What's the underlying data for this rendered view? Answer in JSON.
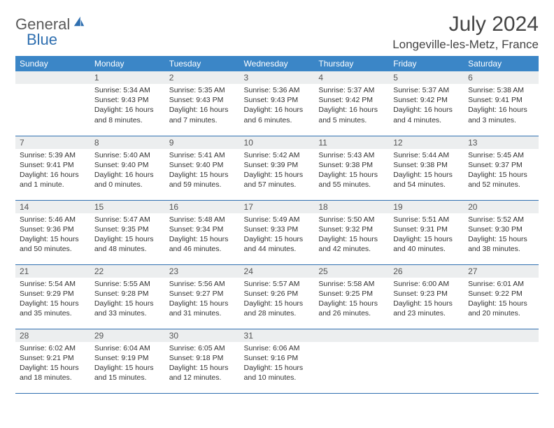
{
  "brand": {
    "part1": "General",
    "part2": "Blue"
  },
  "title": "July 2024",
  "location": "Longeville-les-Metz, France",
  "colors": {
    "header_bg": "#3b86c7",
    "header_text": "#ffffff",
    "daynum_bg": "#eceeef",
    "border": "#2f6fb0",
    "brand_gray": "#5a5a5a",
    "brand_blue": "#2f6fb0"
  },
  "weekdays": [
    "Sunday",
    "Monday",
    "Tuesday",
    "Wednesday",
    "Thursday",
    "Friday",
    "Saturday"
  ],
  "weeks": [
    [
      {
        "n": "",
        "lines": []
      },
      {
        "n": "1",
        "lines": [
          "Sunrise: 5:34 AM",
          "Sunset: 9:43 PM",
          "Daylight: 16 hours and 8 minutes."
        ]
      },
      {
        "n": "2",
        "lines": [
          "Sunrise: 5:35 AM",
          "Sunset: 9:43 PM",
          "Daylight: 16 hours and 7 minutes."
        ]
      },
      {
        "n": "3",
        "lines": [
          "Sunrise: 5:36 AM",
          "Sunset: 9:43 PM",
          "Daylight: 16 hours and 6 minutes."
        ]
      },
      {
        "n": "4",
        "lines": [
          "Sunrise: 5:37 AM",
          "Sunset: 9:42 PM",
          "Daylight: 16 hours and 5 minutes."
        ]
      },
      {
        "n": "5",
        "lines": [
          "Sunrise: 5:37 AM",
          "Sunset: 9:42 PM",
          "Daylight: 16 hours and 4 minutes."
        ]
      },
      {
        "n": "6",
        "lines": [
          "Sunrise: 5:38 AM",
          "Sunset: 9:41 PM",
          "Daylight: 16 hours and 3 minutes."
        ]
      }
    ],
    [
      {
        "n": "7",
        "lines": [
          "Sunrise: 5:39 AM",
          "Sunset: 9:41 PM",
          "Daylight: 16 hours and 1 minute."
        ]
      },
      {
        "n": "8",
        "lines": [
          "Sunrise: 5:40 AM",
          "Sunset: 9:40 PM",
          "Daylight: 16 hours and 0 minutes."
        ]
      },
      {
        "n": "9",
        "lines": [
          "Sunrise: 5:41 AM",
          "Sunset: 9:40 PM",
          "Daylight: 15 hours and 59 minutes."
        ]
      },
      {
        "n": "10",
        "lines": [
          "Sunrise: 5:42 AM",
          "Sunset: 9:39 PM",
          "Daylight: 15 hours and 57 minutes."
        ]
      },
      {
        "n": "11",
        "lines": [
          "Sunrise: 5:43 AM",
          "Sunset: 9:38 PM",
          "Daylight: 15 hours and 55 minutes."
        ]
      },
      {
        "n": "12",
        "lines": [
          "Sunrise: 5:44 AM",
          "Sunset: 9:38 PM",
          "Daylight: 15 hours and 54 minutes."
        ]
      },
      {
        "n": "13",
        "lines": [
          "Sunrise: 5:45 AM",
          "Sunset: 9:37 PM",
          "Daylight: 15 hours and 52 minutes."
        ]
      }
    ],
    [
      {
        "n": "14",
        "lines": [
          "Sunrise: 5:46 AM",
          "Sunset: 9:36 PM",
          "Daylight: 15 hours and 50 minutes."
        ]
      },
      {
        "n": "15",
        "lines": [
          "Sunrise: 5:47 AM",
          "Sunset: 9:35 PM",
          "Daylight: 15 hours and 48 minutes."
        ]
      },
      {
        "n": "16",
        "lines": [
          "Sunrise: 5:48 AM",
          "Sunset: 9:34 PM",
          "Daylight: 15 hours and 46 minutes."
        ]
      },
      {
        "n": "17",
        "lines": [
          "Sunrise: 5:49 AM",
          "Sunset: 9:33 PM",
          "Daylight: 15 hours and 44 minutes."
        ]
      },
      {
        "n": "18",
        "lines": [
          "Sunrise: 5:50 AM",
          "Sunset: 9:32 PM",
          "Daylight: 15 hours and 42 minutes."
        ]
      },
      {
        "n": "19",
        "lines": [
          "Sunrise: 5:51 AM",
          "Sunset: 9:31 PM",
          "Daylight: 15 hours and 40 minutes."
        ]
      },
      {
        "n": "20",
        "lines": [
          "Sunrise: 5:52 AM",
          "Sunset: 9:30 PM",
          "Daylight: 15 hours and 38 minutes."
        ]
      }
    ],
    [
      {
        "n": "21",
        "lines": [
          "Sunrise: 5:54 AM",
          "Sunset: 9:29 PM",
          "Daylight: 15 hours and 35 minutes."
        ]
      },
      {
        "n": "22",
        "lines": [
          "Sunrise: 5:55 AM",
          "Sunset: 9:28 PM",
          "Daylight: 15 hours and 33 minutes."
        ]
      },
      {
        "n": "23",
        "lines": [
          "Sunrise: 5:56 AM",
          "Sunset: 9:27 PM",
          "Daylight: 15 hours and 31 minutes."
        ]
      },
      {
        "n": "24",
        "lines": [
          "Sunrise: 5:57 AM",
          "Sunset: 9:26 PM",
          "Daylight: 15 hours and 28 minutes."
        ]
      },
      {
        "n": "25",
        "lines": [
          "Sunrise: 5:58 AM",
          "Sunset: 9:25 PM",
          "Daylight: 15 hours and 26 minutes."
        ]
      },
      {
        "n": "26",
        "lines": [
          "Sunrise: 6:00 AM",
          "Sunset: 9:23 PM",
          "Daylight: 15 hours and 23 minutes."
        ]
      },
      {
        "n": "27",
        "lines": [
          "Sunrise: 6:01 AM",
          "Sunset: 9:22 PM",
          "Daylight: 15 hours and 20 minutes."
        ]
      }
    ],
    [
      {
        "n": "28",
        "lines": [
          "Sunrise: 6:02 AM",
          "Sunset: 9:21 PM",
          "Daylight: 15 hours and 18 minutes."
        ]
      },
      {
        "n": "29",
        "lines": [
          "Sunrise: 6:04 AM",
          "Sunset: 9:19 PM",
          "Daylight: 15 hours and 15 minutes."
        ]
      },
      {
        "n": "30",
        "lines": [
          "Sunrise: 6:05 AM",
          "Sunset: 9:18 PM",
          "Daylight: 15 hours and 12 minutes."
        ]
      },
      {
        "n": "31",
        "lines": [
          "Sunrise: 6:06 AM",
          "Sunset: 9:16 PM",
          "Daylight: 15 hours and 10 minutes."
        ]
      },
      {
        "n": "",
        "lines": []
      },
      {
        "n": "",
        "lines": []
      },
      {
        "n": "",
        "lines": []
      }
    ]
  ]
}
